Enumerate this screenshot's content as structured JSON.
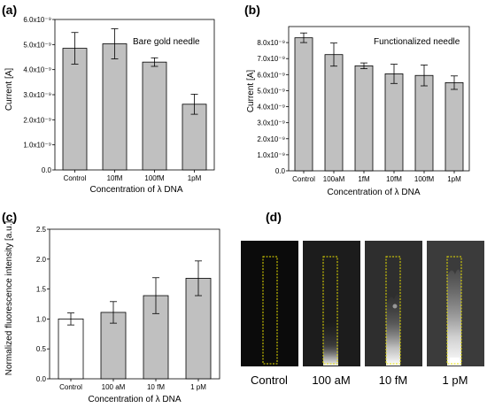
{
  "chart_data": [
    {
      "panel": "(a)",
      "type": "bar",
      "title": "",
      "annotation": "Bare gold needle",
      "categories": [
        "Control",
        "10fM",
        "100fM",
        "1pM"
      ],
      "series": [
        {
          "values": [
            4.85e-09,
            5.03e-09,
            4.3e-09,
            2.62e-09
          ],
          "errors": [
            6.3e-10,
            6e-10,
            1.7e-10,
            4e-10
          ]
        }
      ],
      "xlabel": "Concentration of λ DNA",
      "ylabel": "Current [A]",
      "ylim": [
        0,
        6e-09
      ],
      "yticks": [
        0,
        1e-09,
        2e-09,
        3e-09,
        4e-09,
        5e-09,
        6e-09
      ],
      "ytick_labels": [
        "0.0",
        "1.0x10⁻⁹",
        "2.0x10⁻⁹",
        "3.0x10⁻⁹",
        "4.0x10⁻⁹",
        "5.0x10⁻⁹",
        "6.0x10⁻⁹"
      ],
      "bar_color": "#c0c0c0",
      "grid": false
    },
    {
      "panel": "(b)",
      "type": "bar",
      "title": "",
      "annotation": "Functionalized needle",
      "categories": [
        "Control",
        "100aM",
        "1fM",
        "10fM",
        "100fM",
        "1pM"
      ],
      "series": [
        {
          "values": [
            8.3e-09,
            7.25e-09,
            6.55e-09,
            6.05e-09,
            5.95e-09,
            5.5e-09
          ],
          "errors": [
            3e-10,
            7.2e-10,
            1.8e-10,
            6e-10,
            6.5e-10,
            4.2e-10
          ]
        }
      ],
      "xlabel": "Concentration of λ DNA",
      "ylabel": "Current [A]",
      "ylim": [
        0,
        9e-09
      ],
      "yticks": [
        0,
        1e-09,
        2e-09,
        3e-09,
        4e-09,
        5e-09,
        6e-09,
        7e-09,
        8e-09
      ],
      "ytick_labels": [
        "0.0",
        "1.0x10⁻⁹",
        "2.0x10⁻⁹",
        "3.0x10⁻⁹",
        "4.0x10⁻⁹",
        "5.0x10⁻⁹",
        "6.0x10⁻⁹",
        "7.0x10⁻⁹",
        "8.0x10⁻⁹"
      ],
      "bar_color": "#c0c0c0",
      "grid": false
    },
    {
      "panel": "(c)",
      "type": "bar",
      "title": "",
      "categories": [
        "Control",
        "100 aM",
        "10 fM",
        "1 pM"
      ],
      "series": [
        {
          "values": [
            1.0,
            1.11,
            1.39,
            1.68
          ],
          "errors": [
            0.1,
            0.18,
            0.3,
            0.29
          ]
        }
      ],
      "bar_colors": [
        "#ffffff",
        "#c0c0c0",
        "#c0c0c0",
        "#c0c0c0"
      ],
      "xlabel": "Concentration of λ DNA",
      "ylabel": "Normalized fluorescence intensity [a.u.]",
      "ylim": [
        0,
        2.5
      ],
      "yticks": [
        0,
        0.5,
        1.0,
        1.5,
        2.0,
        2.5
      ],
      "ytick_labels": [
        "0.0",
        "0.5",
        "1.0",
        "1.5",
        "2.0",
        "2.5"
      ],
      "grid": false
    }
  ],
  "panel_d": {
    "letter": "(d)",
    "labels": [
      "Control",
      "100 aM",
      "10 fM",
      "1 pM"
    ],
    "highlight_color": "#e8e000"
  }
}
